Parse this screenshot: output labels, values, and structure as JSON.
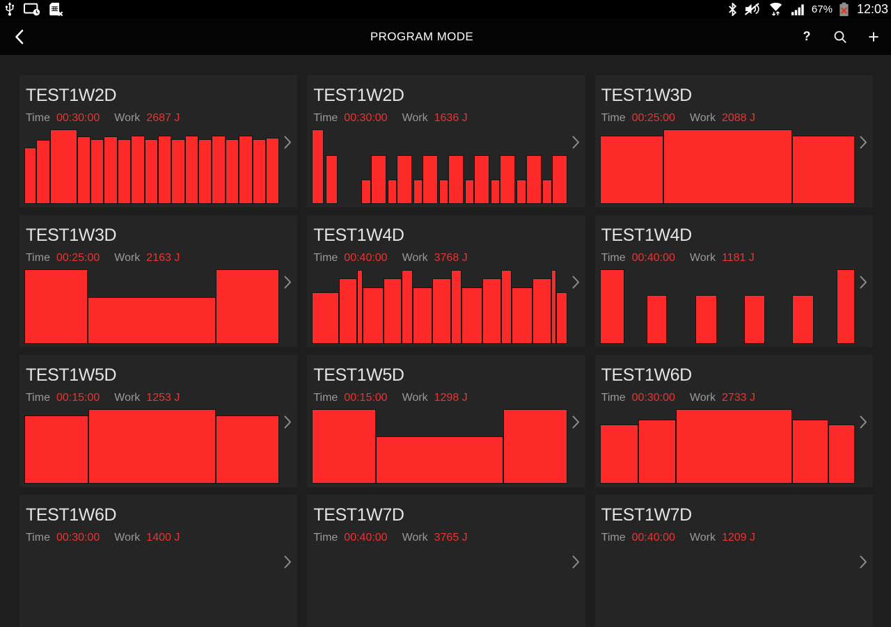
{
  "status": {
    "time": "12:03",
    "battery": "67%",
    "left_icons": [
      "usb",
      "screen-timeout",
      "no-sim"
    ],
    "right_icons": [
      "bluetooth",
      "mute",
      "wifi-transfer",
      "signal-strength",
      "battery-alert"
    ]
  },
  "header": {
    "title": "PROGRAM MODE",
    "help_glyph": "?",
    "add_glyph": "+",
    "icons": [
      "back",
      "help",
      "search",
      "add"
    ]
  },
  "labels": {
    "time": "Time",
    "work": "Work"
  },
  "colors": {
    "bar_red": "#fd2a2a",
    "value_red": "#ef3232",
    "label_gray": "#9a9a9a",
    "card_bg": "#252525",
    "page_bg": "#1e1e1e"
  },
  "cards": [
    {
      "title": "TEST1W2D",
      "time": "00:30:00",
      "work": "2687 J",
      "bars": [
        [
          15,
          76
        ],
        [
          17,
          86
        ],
        [
          36,
          100
        ],
        [
          17,
          91
        ],
        [
          17,
          87
        ],
        [
          17,
          91
        ],
        [
          17,
          87
        ],
        [
          17,
          92
        ],
        [
          17,
          87
        ],
        [
          17,
          92
        ],
        [
          17,
          87
        ],
        [
          17,
          92
        ],
        [
          17,
          87
        ],
        [
          17,
          92
        ],
        [
          17,
          87
        ],
        [
          17,
          92
        ],
        [
          17,
          87
        ],
        [
          17,
          89
        ]
      ]
    },
    {
      "title": "TEST1W2D",
      "time": "00:30:00",
      "work": "1636 J",
      "bars": [
        [
          17,
          100
        ],
        [
          3,
          0
        ],
        [
          17,
          65
        ],
        [
          40,
          0
        ],
        [
          13,
          33
        ],
        [
          23,
          65
        ],
        [
          2,
          0
        ],
        [
          13,
          33
        ],
        [
          23,
          65
        ],
        [
          2,
          0
        ],
        [
          13,
          33
        ],
        [
          23,
          65
        ],
        [
          2,
          0
        ],
        [
          13,
          33
        ],
        [
          23,
          65
        ],
        [
          2,
          0
        ],
        [
          13,
          33
        ],
        [
          23,
          65
        ],
        [
          2,
          0
        ],
        [
          13,
          33
        ],
        [
          23,
          65
        ],
        [
          2,
          0
        ],
        [
          13,
          33
        ],
        [
          23,
          65
        ],
        [
          2,
          0
        ],
        [
          13,
          33
        ],
        [
          23,
          65
        ]
      ]
    },
    {
      "title": "TEST1W3D",
      "time": "00:25:00",
      "work": "2088 J",
      "bars": [
        [
          90,
          92
        ],
        [
          184,
          100
        ],
        [
          89,
          92
        ]
      ]
    },
    {
      "title": "TEST1W3D",
      "time": "00:25:00",
      "work": "2163 J",
      "bars": [
        [
          90,
          100
        ],
        [
          183,
          63
        ],
        [
          90,
          100
        ]
      ]
    },
    {
      "title": "TEST1W4D",
      "time": "00:40:00",
      "work": "3768 J",
      "bars": [
        [
          38,
          69
        ],
        [
          26,
          88
        ],
        [
          6,
          99
        ],
        [
          29,
          76
        ],
        [
          26,
          88
        ],
        [
          14,
          99
        ],
        [
          28,
          76
        ],
        [
          26,
          88
        ],
        [
          14,
          99
        ],
        [
          29,
          76
        ],
        [
          26,
          88
        ],
        [
          14,
          99
        ],
        [
          29,
          76
        ],
        [
          26,
          88
        ],
        [
          6,
          99
        ],
        [
          14,
          69
        ]
      ]
    },
    {
      "title": "TEST1W4D",
      "time": "00:40:00",
      "work": "1181 J",
      "bars": [
        [
          34,
          100
        ],
        [
          33,
          0
        ],
        [
          27,
          65
        ],
        [
          42,
          0
        ],
        [
          30,
          65
        ],
        [
          40,
          0
        ],
        [
          28,
          65
        ],
        [
          40,
          0
        ],
        [
          30,
          65
        ],
        [
          33,
          0
        ],
        [
          25,
          100
        ]
      ]
    },
    {
      "title": "TEST1W5D",
      "time": "00:15:00",
      "work": "1253 J",
      "bars": [
        [
          90,
          92
        ],
        [
          182,
          100
        ],
        [
          90,
          92
        ]
      ]
    },
    {
      "title": "TEST1W5D",
      "time": "00:15:00",
      "work": "1298 J",
      "bars": [
        [
          96,
          100
        ],
        [
          194,
          64
        ],
        [
          96,
          100
        ]
      ]
    },
    {
      "title": "TEST1W6D",
      "time": "00:30:00",
      "work": "2733 J",
      "bars": [
        [
          54,
          79
        ],
        [
          52,
          86
        ],
        [
          166,
          100
        ],
        [
          51,
          86
        ],
        [
          36,
          79
        ]
      ]
    },
    {
      "title": "TEST1W6D",
      "time": "00:30:00",
      "work": "1400 J",
      "bars": []
    },
    {
      "title": "TEST1W7D",
      "time": "00:40:00",
      "work": "3765 J",
      "bars": []
    },
    {
      "title": "TEST1W7D",
      "time": "00:40:00",
      "work": "1209 J",
      "bars": []
    }
  ]
}
